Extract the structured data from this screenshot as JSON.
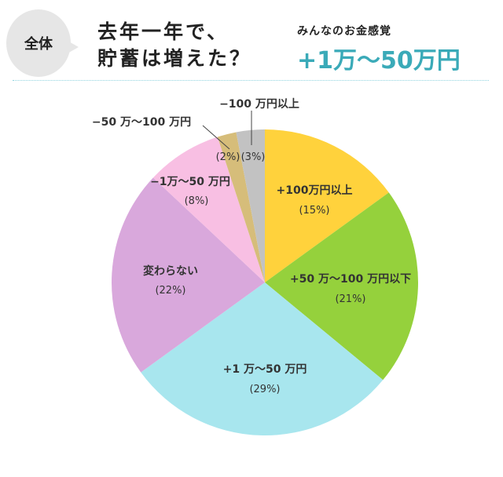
{
  "header": {
    "badge": "全体",
    "title_line1": "去年一年で、",
    "title_line2": "貯蓄は増えた？",
    "sense_label": "みんなのお金感覚",
    "sense_value": "+1万〜50万円",
    "accent_color": "#3aaab8"
  },
  "chart_data": {
    "type": "pie",
    "start": "top",
    "direction": "clockwise",
    "slices": [
      {
        "label": "+100万円以上",
        "value": 15,
        "pct_label": "(15%)",
        "color": "#ffd23c"
      },
      {
        "label": "+50 万〜100 万円以下",
        "value": 21,
        "pct_label": "(21%)",
        "color": "#95d13c"
      },
      {
        "label": "+1 万〜50 万円",
        "value": 29,
        "pct_label": "(29%)",
        "color": "#a8e6ee"
      },
      {
        "label": "変わらない",
        "value": 22,
        "pct_label": "(22%)",
        "color": "#d9a8dc"
      },
      {
        "label": "−1万〜50 万円",
        "value": 8,
        "pct_label": "(8%)",
        "color": "#f8bfe3"
      },
      {
        "label": "−50 万〜100 万円",
        "value": 2,
        "pct_label": "(2%)",
        "color": "#d6bd7a"
      },
      {
        "label": "−100 万円以上",
        "value": 3,
        "pct_label": "(3%)",
        "color": "#c2c2c2"
      }
    ]
  }
}
